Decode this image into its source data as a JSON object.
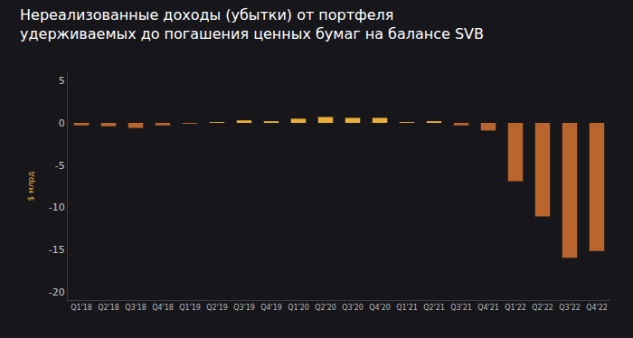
{
  "chart_data": {
    "type": "bar",
    "title": "Нереализованные доходы (убытки) от портфеля\nудерживаемых до погашения ценных бумаг на балансе SVB",
    "y_label": "$ млрд",
    "categories": [
      "Q1'18",
      "Q2'18",
      "Q3'18",
      "Q4'18",
      "Q1'19",
      "Q2'19",
      "Q3'19",
      "Q4'19",
      "Q1'20",
      "Q2'20",
      "Q3'20",
      "Q4'20",
      "Q1'21",
      "Q2'21",
      "Q3'21",
      "Q4'21",
      "Q1'22",
      "Q2'22",
      "Q3'22",
      "Q4'22"
    ],
    "values": [
      -0.3,
      -0.4,
      -0.6,
      -0.3,
      -0.1,
      0.1,
      0.3,
      0.2,
      0.5,
      0.7,
      0.6,
      0.6,
      0.1,
      0.2,
      -0.3,
      -0.9,
      -6.9,
      -11.1,
      -16.0,
      -15.2
    ],
    "colors": [
      "#b8652e",
      "#b8652e",
      "#b8652e",
      "#b8652e",
      "#b8652e",
      "#e9ae3c",
      "#e9ae3c",
      "#e9ae3c",
      "#e9ae3c",
      "#e9ae3c",
      "#e9ae3c",
      "#e9ae3c",
      "#e9ae3c",
      "#e9ae3c",
      "#b8652e",
      "#b8652e",
      "#b8652e",
      "#b8652e",
      "#b8652e",
      "#b8652e"
    ],
    "ylim": [
      -21,
      6
    ],
    "yticks": [
      5,
      0,
      -5,
      -10,
      -15,
      -20
    ],
    "grid": false
  }
}
